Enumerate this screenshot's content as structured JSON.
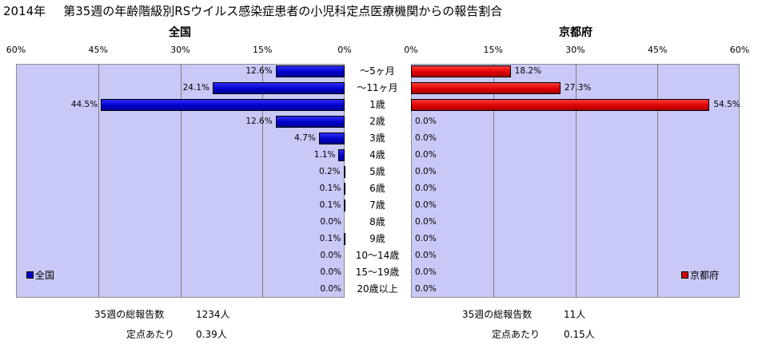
{
  "title": {
    "year": "2014年",
    "text": "第35週の年齢階級別RSウイルス感染症患者の小児科定点医療機関からの報告割合"
  },
  "chart_data": [
    {
      "type": "bar",
      "orientation": "horizontal",
      "direction": "right-to-left",
      "title": "全国",
      "xlim": [
        0,
        60
      ],
      "tick_labels": [
        "60%",
        "45%",
        "30%",
        "15%",
        "0%"
      ],
      "grid": true,
      "legend": {
        "position": "bottom-left",
        "color": "#0000cc"
      },
      "categories": [
        "～5ヶ月",
        "～11ヶ月",
        "1歳",
        "2歳",
        "3歳",
        "4歳",
        "5歳",
        "6歳",
        "7歳",
        "8歳",
        "9歳",
        "10～14歳",
        "15～19歳",
        "20歳以上"
      ],
      "series": [
        {
          "name": "全国",
          "values": [
            12.6,
            24.1,
            44.5,
            12.6,
            4.7,
            1.1,
            0.2,
            0.1,
            0.1,
            0.0,
            0.1,
            0.0,
            0.0,
            0.0
          ]
        }
      ],
      "value_labels": [
        "12.6%",
        "24.1%",
        "44.5%",
        "12.6%",
        "4.7%",
        "1.1%",
        "0.2%",
        "0.1%",
        "0.1%",
        "0.0%",
        "0.1%",
        "0.0%",
        "0.0%",
        "0.0%"
      ]
    },
    {
      "type": "bar",
      "orientation": "horizontal",
      "direction": "left-to-right",
      "title": "京都府",
      "xlim": [
        0,
        60
      ],
      "tick_labels": [
        "0%",
        "15%",
        "30%",
        "45%",
        "60%"
      ],
      "grid": true,
      "legend": {
        "position": "bottom-right",
        "color": "#cc0000"
      },
      "categories": [
        "～5ヶ月",
        "～11ヶ月",
        "1歳",
        "2歳",
        "3歳",
        "4歳",
        "5歳",
        "6歳",
        "7歳",
        "8歳",
        "9歳",
        "10～14歳",
        "15～19歳",
        "20歳以上"
      ],
      "series": [
        {
          "name": "京都府",
          "values": [
            18.2,
            27.3,
            54.5,
            0,
            0,
            0,
            0,
            0,
            0,
            0,
            0,
            0,
            0,
            0
          ]
        }
      ],
      "value_labels": [
        "18.2%",
        "27.3%",
        "54.5%",
        "0.0%",
        "0.0%",
        "0.0%",
        "0.0%",
        "0.0%",
        "0.0%",
        "0.0%",
        "0.0%",
        "0.0%",
        "0.0%",
        "0.0%"
      ]
    }
  ],
  "footer": {
    "left": {
      "total_label": "35週の総報告数",
      "total_value": "1234人",
      "per_label": "定点あたり",
      "per_value": "0.39人"
    },
    "right": {
      "total_label": "35週の総報告数",
      "total_value": "11人",
      "per_label": "定点あたり",
      "per_value": "0.15人"
    }
  }
}
